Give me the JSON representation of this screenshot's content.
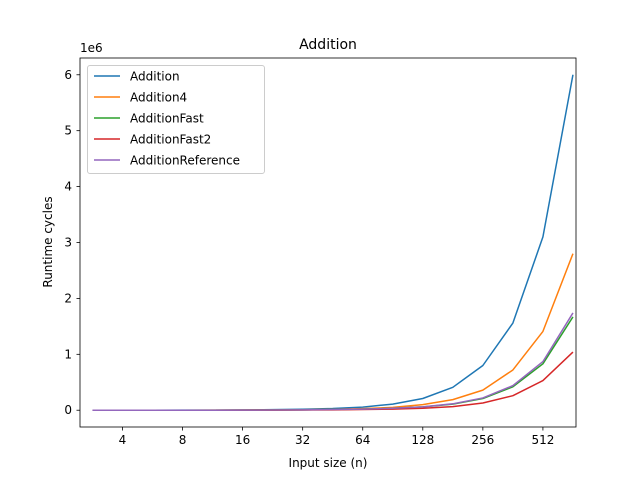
{
  "chart_data": {
    "type": "line",
    "title": "Addition",
    "xlabel": "Input size (n)",
    "ylabel": "Runtime cycles",
    "y_scale_label": "1e6",
    "x_scale": "log2",
    "xlim": [
      2.45,
      750
    ],
    "ylim": [
      -300000,
      6300000
    ],
    "x_ticks": [
      4,
      8,
      16,
      32,
      64,
      128,
      256,
      512
    ],
    "x_tick_labels": [
      "4",
      "8",
      "16",
      "32",
      "64",
      "128",
      "256",
      "512"
    ],
    "y_ticks": [
      0,
      1000000,
      2000000,
      3000000,
      4000000,
      5000000,
      6000000
    ],
    "y_tick_labels": [
      "0",
      "1",
      "2",
      "3",
      "4",
      "5",
      "6"
    ],
    "legend_position": "top-left",
    "grid": false,
    "x": [
      2.83,
      4,
      5.66,
      8,
      11.31,
      16,
      22.63,
      32,
      45.25,
      64,
      90.51,
      128,
      181.02,
      256,
      362.04,
      512,
      724.08
    ],
    "series": [
      {
        "name": "Addition",
        "color": "#1f77b4",
        "values": [
          0,
          0,
          0,
          1000,
          2000,
          5000,
          10000,
          18000,
          30000,
          55000,
          110000,
          210000,
          410000,
          800000,
          1560000,
          3100000,
          6000000
        ]
      },
      {
        "name": "Addition4",
        "color": "#ff7f0e",
        "values": [
          0,
          0,
          0,
          500,
          1000,
          2000,
          5000,
          9000,
          15000,
          28000,
          50000,
          100000,
          190000,
          360000,
          720000,
          1410000,
          2800000
        ]
      },
      {
        "name": "AdditionFast",
        "color": "#2ca02c",
        "values": [
          0,
          0,
          0,
          300,
          700,
          1500,
          3000,
          6000,
          12000,
          20000,
          35000,
          60000,
          110000,
          210000,
          420000,
          830000,
          1670000
        ]
      },
      {
        "name": "AdditionFast2",
        "color": "#d62728",
        "values": [
          0,
          0,
          0,
          200,
          400,
          1000,
          2000,
          4000,
          7000,
          12000,
          20000,
          35000,
          65000,
          130000,
          260000,
          530000,
          1040000
        ]
      },
      {
        "name": "AdditionReference",
        "color": "#9467bd",
        "values": [
          0,
          0,
          0,
          300,
          700,
          1500,
          3000,
          6000,
          12000,
          20000,
          35000,
          60000,
          115000,
          220000,
          440000,
          870000,
          1740000
        ]
      }
    ]
  }
}
